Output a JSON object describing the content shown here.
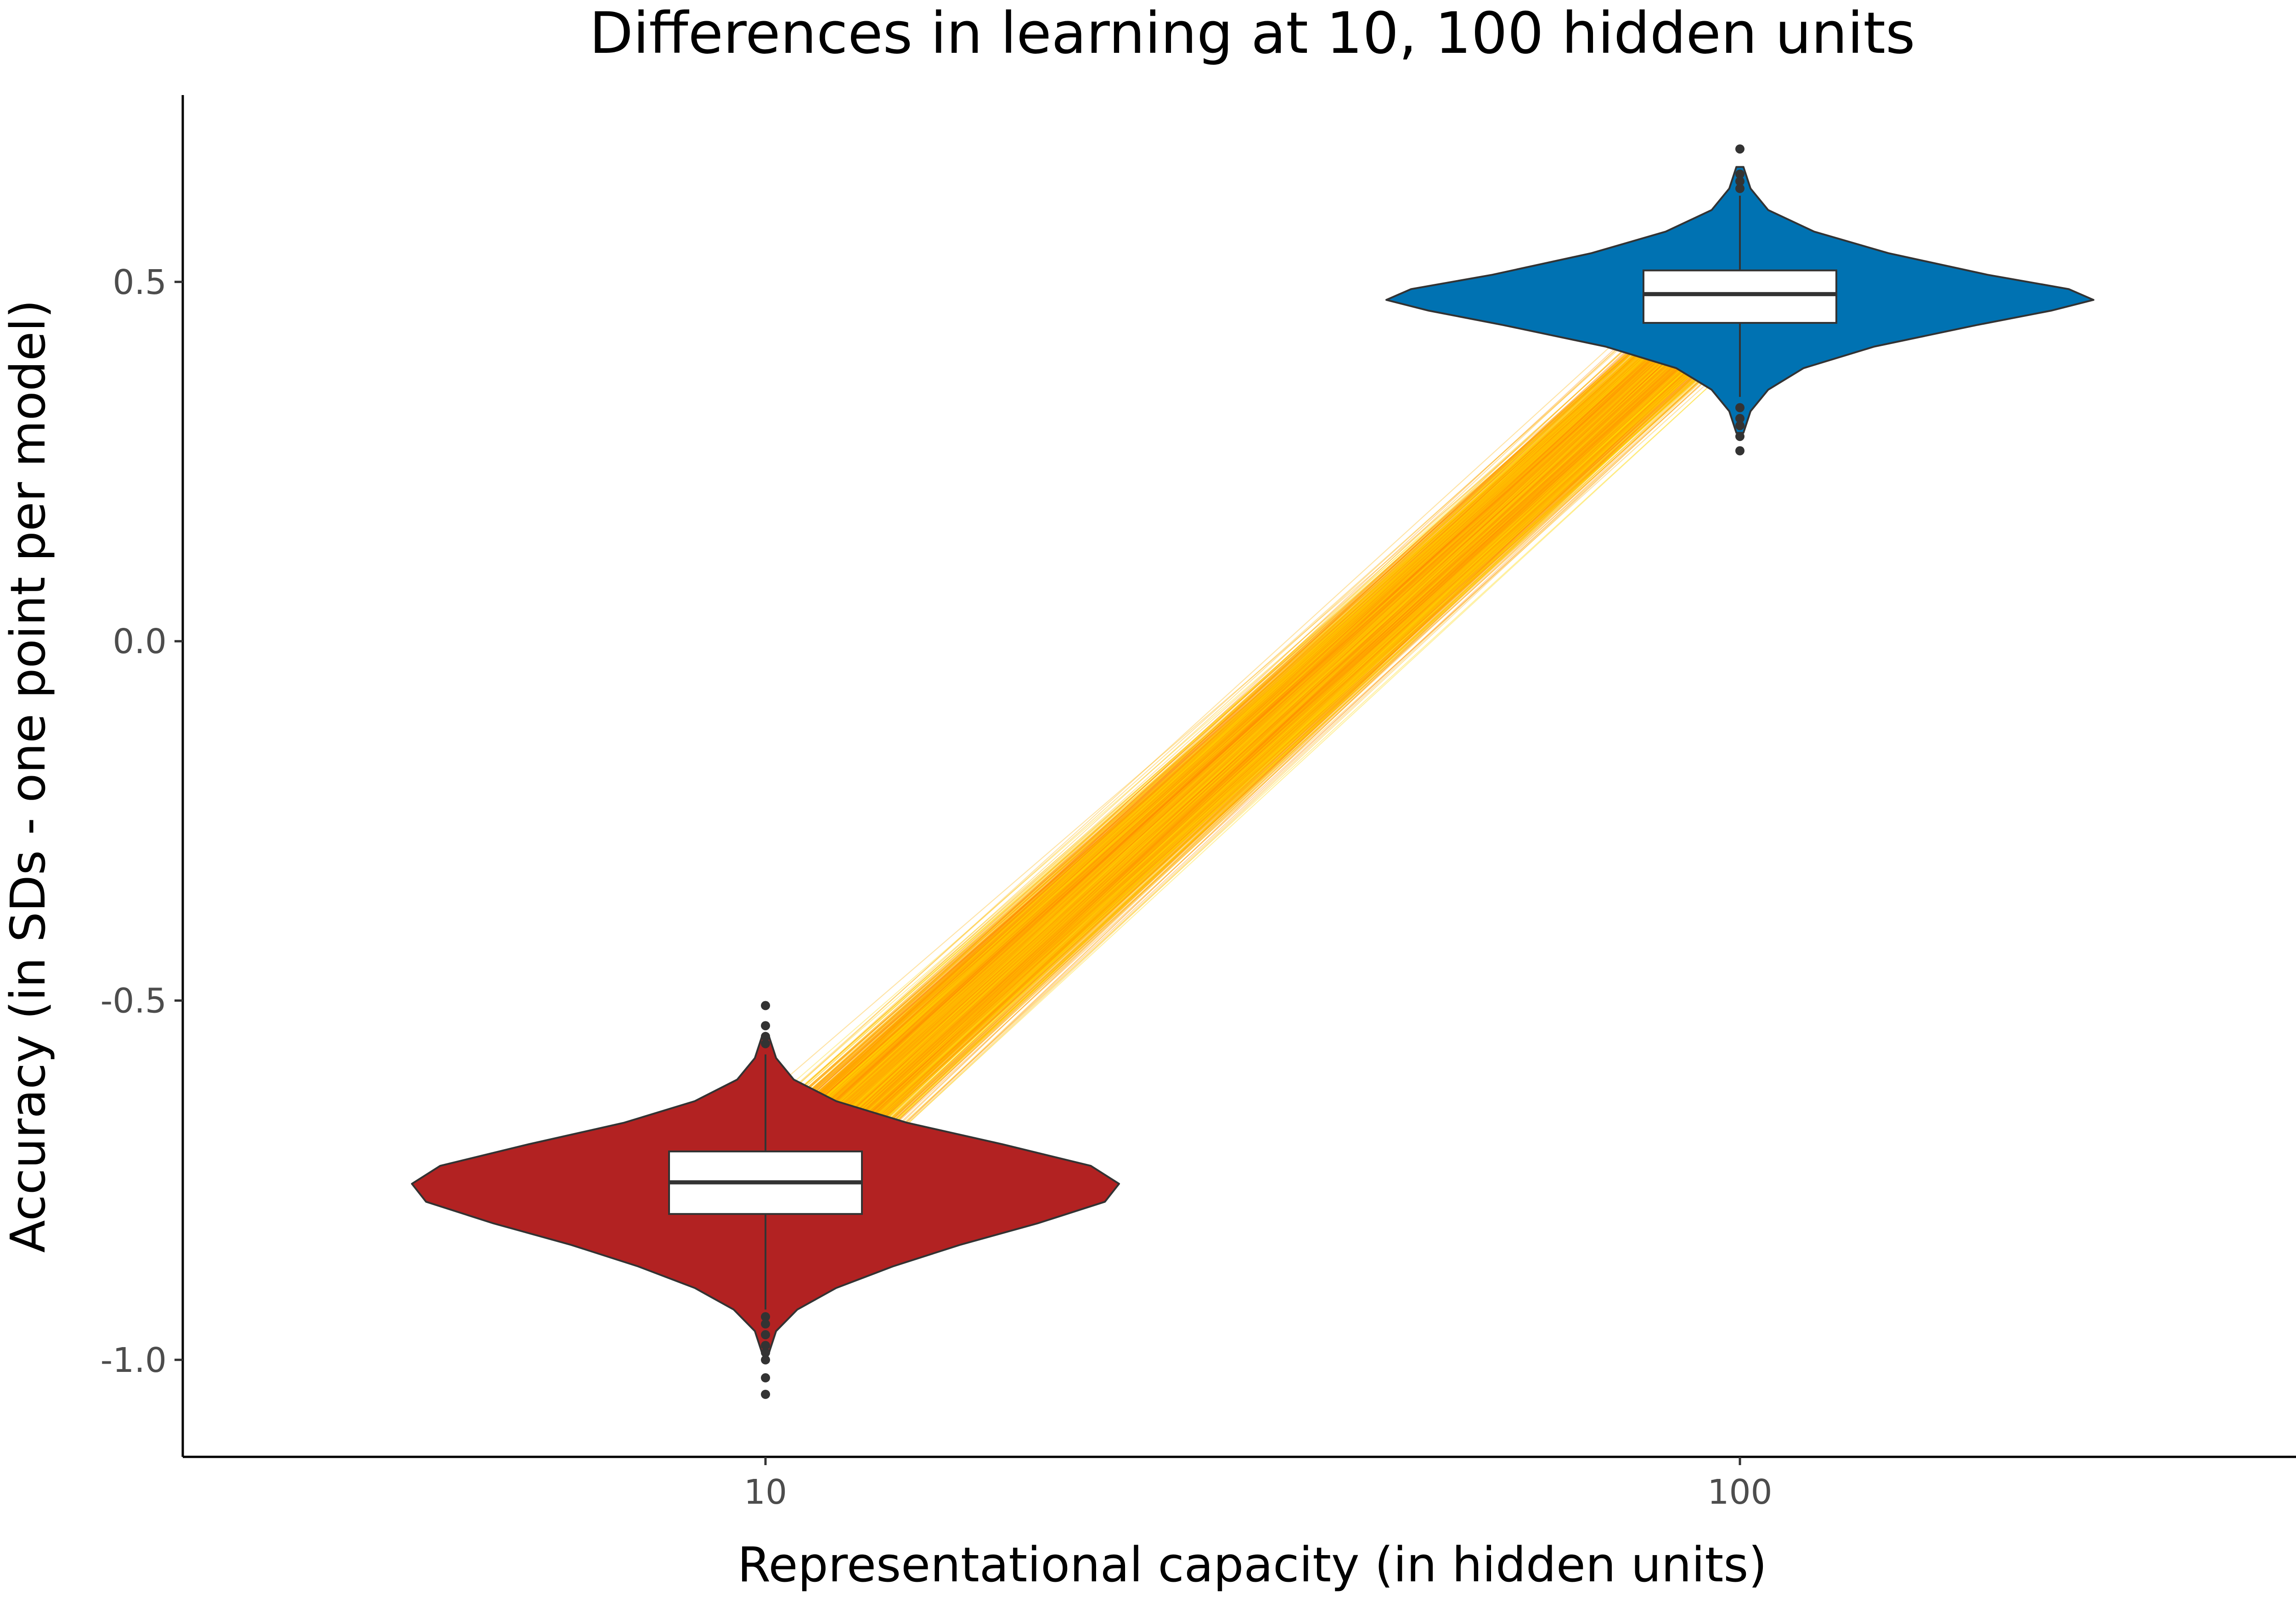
{
  "chart_data": {
    "type": "violin",
    "title": "Differences in learning at 10, 100 hidden units",
    "xlabel": "Representational capacity (in hidden units)",
    "ylabel": "Accuracy (in SDs - one point per model)",
    "categories": [
      "10",
      "100"
    ],
    "ylim": [
      -1.135,
      0.76
    ],
    "yticks": [
      -1.0,
      -0.5,
      0.0,
      0.5
    ],
    "ytick_labels": [
      "-1.0",
      "-0.5",
      "0.0",
      "0.5"
    ],
    "grid": false,
    "groups": [
      {
        "category": "10",
        "color": "#b22222",
        "median": -0.753,
        "q1": -0.797,
        "q3": -0.71,
        "whisker_low": -0.93,
        "whisker_high": -0.575,
        "outliers": [
          -1.048,
          -1.025,
          -1.0,
          -0.99,
          -0.98,
          -0.965,
          -0.95,
          -0.94,
          -0.56,
          -0.55,
          -0.535,
          -0.507
        ],
        "density_profile": [
          [
            -0.99,
            0.01
          ],
          [
            -0.96,
            0.03
          ],
          [
            -0.93,
            0.09
          ],
          [
            -0.9,
            0.2
          ],
          [
            -0.87,
            0.36
          ],
          [
            -0.84,
            0.55
          ],
          [
            -0.81,
            0.77
          ],
          [
            -0.78,
            0.96
          ],
          [
            -0.755,
            1.0
          ],
          [
            -0.73,
            0.92
          ],
          [
            -0.7,
            0.67
          ],
          [
            -0.67,
            0.4
          ],
          [
            -0.64,
            0.2
          ],
          [
            -0.61,
            0.08
          ],
          [
            -0.58,
            0.03
          ],
          [
            -0.55,
            0.01
          ]
        ]
      },
      {
        "category": "100",
        "color": "#0072b2",
        "median": 0.483,
        "q1": 0.443,
        "q3": 0.516,
        "whisker_low": 0.34,
        "whisker_high": 0.62,
        "outliers": [
          0.265,
          0.285,
          0.3,
          0.31,
          0.325,
          0.63,
          0.64,
          0.65,
          0.685
        ],
        "density_profile": [
          [
            0.29,
            0.01
          ],
          [
            0.32,
            0.03
          ],
          [
            0.35,
            0.08
          ],
          [
            0.38,
            0.18
          ],
          [
            0.41,
            0.38
          ],
          [
            0.44,
            0.67
          ],
          [
            0.46,
            0.88
          ],
          [
            0.475,
            1.0
          ],
          [
            0.49,
            0.93
          ],
          [
            0.51,
            0.7
          ],
          [
            0.54,
            0.42
          ],
          [
            0.57,
            0.21
          ],
          [
            0.6,
            0.08
          ],
          [
            0.63,
            0.03
          ],
          [
            0.66,
            0.01
          ]
        ]
      }
    ],
    "paired_lines": {
      "description_of_mark": "one line per model connecting its score at 10 and 100 hidden units",
      "colors": [
        "#ffd700",
        "#ffb300",
        "#ff8c00"
      ],
      "from_range": [
        -0.98,
        -0.55
      ],
      "to_range": [
        0.27,
        0.66
      ]
    }
  }
}
